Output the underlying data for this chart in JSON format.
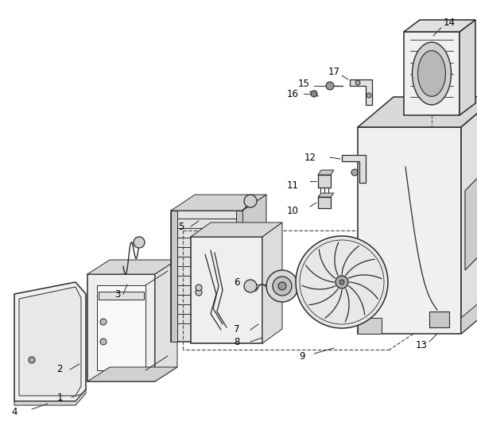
{
  "bg_color": "#ffffff",
  "line_color": "#2a2a2a",
  "label_color": "#000000",
  "figsize": [
    6.0,
    5.6
  ],
  "dpi": 100
}
